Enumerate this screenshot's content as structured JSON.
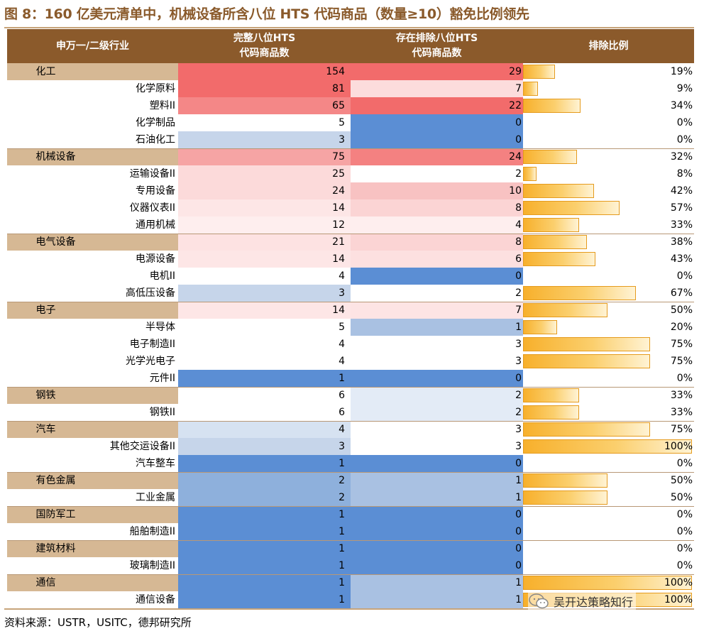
{
  "title": "图 8：160 亿美元清单中，机械设备所含八位 HTS 代码商品（数量≥10）豁免比例领先",
  "header": {
    "col_name": "申万一/二级行业",
    "col_full": "完整八位HTS\n代码商品数",
    "col_excl": "存在排除八位HTS\n代码商品数",
    "col_ratio": "排除比例"
  },
  "rows": [
    {
      "name": "化工",
      "level": 1,
      "full": "154",
      "excl": "29",
      "ratio": "19%",
      "ratio_value": 19,
      "full_color": "#f26b6b",
      "excl_color": "#f26b6b"
    },
    {
      "name": "化学原料",
      "level": 2,
      "full": "81",
      "excl": "7",
      "ratio": "9%",
      "ratio_value": 9,
      "full_color": "#f26b6b",
      "excl_color": "#fcdcdc"
    },
    {
      "name": "塑料II",
      "level": 2,
      "full": "65",
      "excl": "22",
      "ratio": "34%",
      "ratio_value": 34,
      "full_color": "#f48787",
      "excl_color": "#f26b6b"
    },
    {
      "name": "化学制品",
      "level": 2,
      "full": "5",
      "excl": "0",
      "ratio": "0%",
      "ratio_value": 0,
      "full_color": "#ffffff",
      "excl_color": "#5b8ed4"
    },
    {
      "name": "石油化工",
      "level": 2,
      "full": "3",
      "excl": "0",
      "ratio": "0%",
      "ratio_value": 0,
      "full_color": "#c6d5ea",
      "excl_color": "#5b8ed4"
    },
    {
      "name": "机械设备",
      "level": 1,
      "full": "75",
      "excl": "24",
      "ratio": "32%",
      "ratio_value": 32,
      "full_color": "#f6a4a4",
      "excl_color": "#f48181"
    },
    {
      "name": "运输设备II",
      "level": 2,
      "full": "25",
      "excl": "2",
      "ratio": "8%",
      "ratio_value": 8,
      "full_color": "#fcdada",
      "excl_color": "#ffffff"
    },
    {
      "name": "专用设备",
      "level": 2,
      "full": "24",
      "excl": "10",
      "ratio": "42%",
      "ratio_value": 42,
      "full_color": "#fcdada",
      "excl_color": "#f8c2c2"
    },
    {
      "name": "仪器仪表II",
      "level": 2,
      "full": "14",
      "excl": "8",
      "ratio": "57%",
      "ratio_value": 57,
      "full_color": "#fde6e6",
      "excl_color": "#fbd4d4"
    },
    {
      "name": "通用机械",
      "level": 2,
      "full": "12",
      "excl": "4",
      "ratio": "33%",
      "ratio_value": 33,
      "full_color": "#feeeee",
      "excl_color": "#feeeee"
    },
    {
      "name": "电气设备",
      "level": 1,
      "full": "21",
      "excl": "8",
      "ratio": "38%",
      "ratio_value": 38,
      "full_color": "#fde2e2",
      "excl_color": "#fbd4d4"
    },
    {
      "name": "电源设备",
      "level": 2,
      "full": "14",
      "excl": "6",
      "ratio": "43%",
      "ratio_value": 43,
      "full_color": "#fde6e6",
      "excl_color": "#fde0e0"
    },
    {
      "name": "电机II",
      "level": 2,
      "full": "4",
      "excl": "0",
      "ratio": "0%",
      "ratio_value": 0,
      "full_color": "#ffffff",
      "excl_color": "#5b8ed4"
    },
    {
      "name": "高低压设备",
      "level": 2,
      "full": "3",
      "excl": "2",
      "ratio": "67%",
      "ratio_value": 67,
      "full_color": "#c6d5ea",
      "excl_color": "#ffffff"
    },
    {
      "name": "电子",
      "level": 1,
      "full": "14",
      "excl": "7",
      "ratio": "50%",
      "ratio_value": 50,
      "full_color": "#fde6e6",
      "excl_color": "#fde4e4"
    },
    {
      "name": "半导体",
      "level": 2,
      "full": "5",
      "excl": "1",
      "ratio": "20%",
      "ratio_value": 20,
      "full_color": "#ffffff",
      "excl_color": "#a9c1e2"
    },
    {
      "name": "电子制造II",
      "level": 2,
      "full": "4",
      "excl": "3",
      "ratio": "75%",
      "ratio_value": 75,
      "full_color": "#ffffff",
      "excl_color": "#ffffff"
    },
    {
      "name": "光学光电子",
      "level": 2,
      "full": "4",
      "excl": "3",
      "ratio": "75%",
      "ratio_value": 75,
      "full_color": "#ffffff",
      "excl_color": "#ffffff"
    },
    {
      "name": "元件II",
      "level": 2,
      "full": "1",
      "excl": "0",
      "ratio": "0%",
      "ratio_value": 0,
      "full_color": "#5b8ed4",
      "excl_color": "#5b8ed4"
    },
    {
      "name": "钢铁",
      "level": 1,
      "full": "6",
      "excl": "2",
      "ratio": "33%",
      "ratio_value": 33,
      "full_color": "#ffffff",
      "excl_color": "#e3ebf6"
    },
    {
      "name": "钢铁II",
      "level": 2,
      "full": "6",
      "excl": "2",
      "ratio": "33%",
      "ratio_value": 33,
      "full_color": "#ffffff",
      "excl_color": "#e3ebf6"
    },
    {
      "name": "汽车",
      "level": 1,
      "full": "4",
      "excl": "3",
      "ratio": "75%",
      "ratio_value": 75,
      "full_color": "#d6e2f1",
      "excl_color": "#ffffff"
    },
    {
      "name": "其他交运设备II",
      "level": 2,
      "full": "3",
      "excl": "3",
      "ratio": "100%",
      "ratio_value": 100,
      "full_color": "#c6d5ea",
      "excl_color": "#ffffff"
    },
    {
      "name": "汽车整车",
      "level": 2,
      "full": "1",
      "excl": "0",
      "ratio": "0%",
      "ratio_value": 0,
      "full_color": "#5b8ed4",
      "excl_color": "#5b8ed4"
    },
    {
      "name": "有色金属",
      "level": 1,
      "full": "2",
      "excl": "1",
      "ratio": "50%",
      "ratio_value": 50,
      "full_color": "#8eb0dc",
      "excl_color": "#a9c1e2"
    },
    {
      "name": "工业金属",
      "level": 2,
      "full": "2",
      "excl": "1",
      "ratio": "50%",
      "ratio_value": 50,
      "full_color": "#8eb0dc",
      "excl_color": "#a9c1e2"
    },
    {
      "name": "国防军工",
      "level": 1,
      "full": "1",
      "excl": "0",
      "ratio": "0%",
      "ratio_value": 0,
      "full_color": "#5b8ed4",
      "excl_color": "#5b8ed4"
    },
    {
      "name": "船舶制造II",
      "level": 2,
      "full": "1",
      "excl": "0",
      "ratio": "0%",
      "ratio_value": 0,
      "full_color": "#5b8ed4",
      "excl_color": "#5b8ed4"
    },
    {
      "name": "建筑材料",
      "level": 1,
      "full": "1",
      "excl": "0",
      "ratio": "0%",
      "ratio_value": 0,
      "full_color": "#5b8ed4",
      "excl_color": "#5b8ed4"
    },
    {
      "name": "玻璃制造II",
      "level": 2,
      "full": "1",
      "excl": "0",
      "ratio": "0%",
      "ratio_value": 0,
      "full_color": "#5b8ed4",
      "excl_color": "#5b8ed4"
    },
    {
      "name": "通信",
      "level": 1,
      "full": "1",
      "excl": "1",
      "ratio": "100%",
      "ratio_value": 100,
      "full_color": "#5b8ed4",
      "excl_color": "#a9c1e2"
    },
    {
      "name": "通信设备",
      "level": 2,
      "full": "1",
      "excl": "1",
      "ratio": "100%",
      "ratio_value": 100,
      "full_color": "#5b8ed4",
      "excl_color": "#a9c1e2"
    }
  ],
  "source": "资料来源：USTR，USITC，德邦研究所",
  "watermark": "吴开达策略知行"
}
